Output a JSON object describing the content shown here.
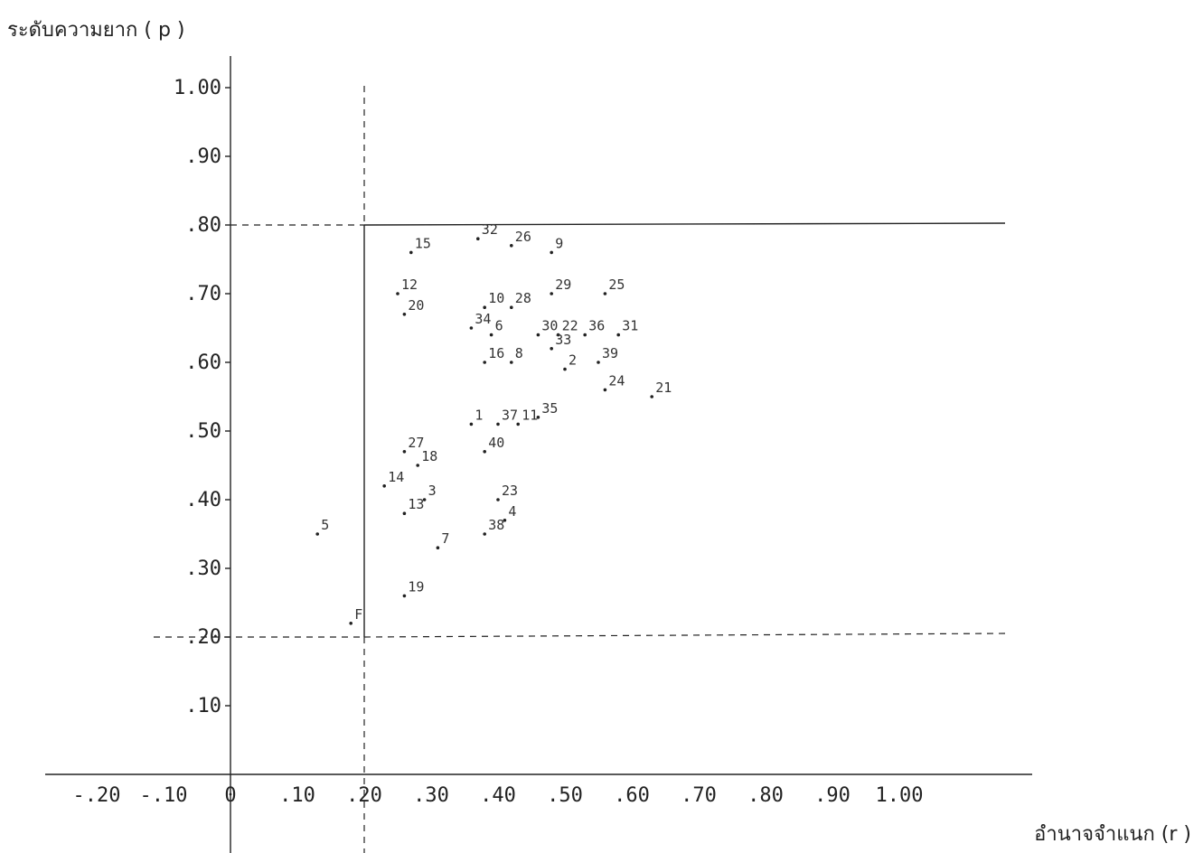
{
  "chart_data": {
    "type": "scatter",
    "ylabel": "ระดับความยาก ( p )",
    "xlabel": "อำนาจจำแนก (r )",
    "x_ticks": [
      "-.20",
      "-.10",
      "0",
      ".10",
      ".20",
      ".30",
      ".40",
      ".50",
      ".60",
      ".70",
      ".80",
      ".90",
      "1.00"
    ],
    "x_tick_values": [
      -0.2,
      -0.1,
      0,
      0.1,
      0.2,
      0.3,
      0.4,
      0.5,
      0.6,
      0.7,
      0.8,
      0.9,
      1.0
    ],
    "y_ticks": [
      "1.00",
      ".90",
      ".80",
      ".70",
      ".60",
      ".50",
      ".40",
      ".30",
      ".20",
      ".10"
    ],
    "y_tick_values": [
      1.0,
      0.9,
      0.8,
      0.7,
      0.6,
      0.5,
      0.4,
      0.3,
      0.2,
      0.1
    ],
    "xlim": [
      -0.2,
      1.0
    ],
    "ylim": [
      0,
      1.0
    ],
    "grid": false,
    "reference_lines": {
      "vertical_x": 0.2,
      "horizontal_y": [
        0.8,
        0.2
      ]
    },
    "points": [
      {
        "label": "15",
        "x": 0.27,
        "y": 0.76
      },
      {
        "label": "32",
        "x": 0.37,
        "y": 0.78
      },
      {
        "label": "26",
        "x": 0.42,
        "y": 0.77
      },
      {
        "label": "9",
        "x": 0.48,
        "y": 0.76
      },
      {
        "label": "12",
        "x": 0.25,
        "y": 0.7
      },
      {
        "label": "29",
        "x": 0.48,
        "y": 0.7
      },
      {
        "label": "25",
        "x": 0.56,
        "y": 0.7
      },
      {
        "label": "10",
        "x": 0.38,
        "y": 0.68
      },
      {
        "label": "28",
        "x": 0.42,
        "y": 0.68
      },
      {
        "label": "20",
        "x": 0.26,
        "y": 0.67
      },
      {
        "label": "34",
        "x": 0.36,
        "y": 0.65
      },
      {
        "label": "6",
        "x": 0.39,
        "y": 0.64
      },
      {
        "label": "30",
        "x": 0.46,
        "y": 0.64
      },
      {
        "label": "22",
        "x": 0.49,
        "y": 0.64
      },
      {
        "label": "36",
        "x": 0.53,
        "y": 0.64
      },
      {
        "label": "31",
        "x": 0.58,
        "y": 0.64
      },
      {
        "label": "33",
        "x": 0.48,
        "y": 0.62
      },
      {
        "label": "39",
        "x": 0.55,
        "y": 0.6
      },
      {
        "label": "16",
        "x": 0.38,
        "y": 0.6
      },
      {
        "label": "8",
        "x": 0.42,
        "y": 0.6
      },
      {
        "label": "2",
        "x": 0.5,
        "y": 0.59
      },
      {
        "label": "24",
        "x": 0.56,
        "y": 0.56
      },
      {
        "label": "21",
        "x": 0.63,
        "y": 0.55
      },
      {
        "label": "35",
        "x": 0.46,
        "y": 0.52
      },
      {
        "label": "1",
        "x": 0.36,
        "y": 0.51
      },
      {
        "label": "37",
        "x": 0.4,
        "y": 0.51
      },
      {
        "label": "11",
        "x": 0.43,
        "y": 0.51
      },
      {
        "label": "27",
        "x": 0.26,
        "y": 0.47
      },
      {
        "label": "18",
        "x": 0.28,
        "y": 0.45
      },
      {
        "label": "40",
        "x": 0.38,
        "y": 0.47
      },
      {
        "label": "14",
        "x": 0.23,
        "y": 0.42
      },
      {
        "label": "3",
        "x": 0.29,
        "y": 0.4
      },
      {
        "label": "23",
        "x": 0.4,
        "y": 0.4
      },
      {
        "label": "13",
        "x": 0.26,
        "y": 0.38
      },
      {
        "label": "4",
        "x": 0.41,
        "y": 0.37
      },
      {
        "label": "5",
        "x": 0.13,
        "y": 0.35
      },
      {
        "label": "7",
        "x": 0.31,
        "y": 0.33
      },
      {
        "label": "38",
        "x": 0.38,
        "y": 0.35
      },
      {
        "label": "19",
        "x": 0.26,
        "y": 0.26
      },
      {
        "label": "F",
        "x": 0.18,
        "y": 0.22
      }
    ]
  }
}
